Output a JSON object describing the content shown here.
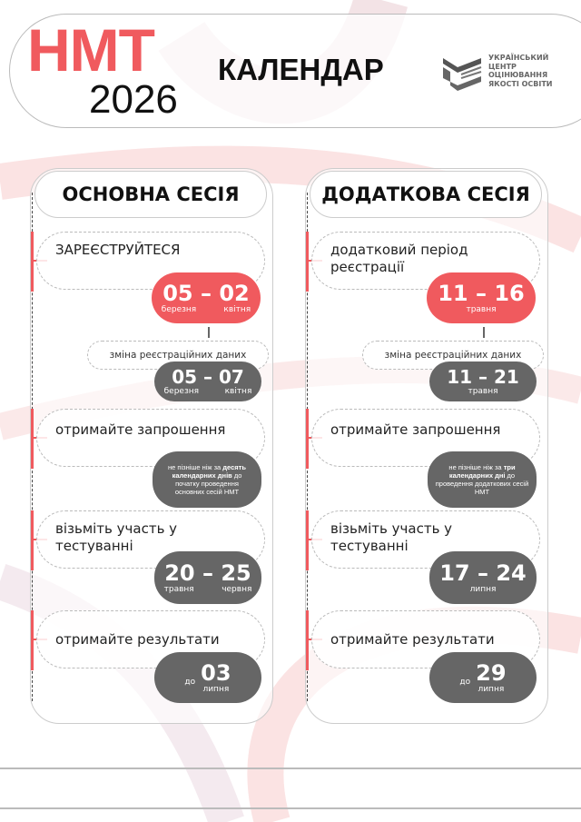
{
  "header": {
    "brand": "НМТ",
    "year": "2026",
    "title": "КАЛЕНДАР",
    "logo_lines": [
      "УКРАЇНСЬКИЙ",
      "ЦЕНТР",
      "ОЦІНЮВАННЯ",
      "ЯКОСТІ ОСВІТИ"
    ]
  },
  "colors": {
    "accent": "#f05a5e",
    "badge_gray": "#666666"
  },
  "sessions": [
    {
      "title": "ОСНОВНА СЕСІЯ",
      "register": {
        "label": "ЗАРЕЄСТРУЙТЕСЯ",
        "from": "05",
        "to": "02",
        "month_from": "березня",
        "month_to": "квітня"
      },
      "change": {
        "label": "зміна реєстраційних даних",
        "from": "05",
        "to": "07",
        "month_from": "березня",
        "month_to": "квітня"
      },
      "invite": {
        "label": "отримайте запрошення",
        "note_pre": "не пізніше ніж за",
        "note_bold": "десять календарних днів",
        "note_post": "до початку проведення основних сесій НМТ"
      },
      "test": {
        "label": "візьміть участь у тестуванні",
        "from": "20",
        "to": "25",
        "month_from": "травня",
        "month_to": "червня"
      },
      "results": {
        "label": "отримайте результати",
        "prefix": "до",
        "day": "03",
        "month": "липня"
      }
    },
    {
      "title": "ДОДАТКОВА СЕСІЯ",
      "register": {
        "label": "додатковий період реєстрації",
        "from": "11",
        "to": "16",
        "month": "травня"
      },
      "change": {
        "label": "зміна реєстраційних даних",
        "from": "11",
        "to": "21",
        "month": "травня"
      },
      "invite": {
        "label": "отримайте запрошення",
        "note_pre": "не пізніше ніж за",
        "note_bold": "три календарних дні",
        "note_post": "до проведення додаткових сесій НМТ"
      },
      "test": {
        "label": "візьміть участь у тестуванні",
        "from": "17",
        "to": "24",
        "month": "липня"
      },
      "results": {
        "label": "отримайте результати",
        "prefix": "до",
        "day": "29",
        "month": "липня"
      }
    }
  ]
}
